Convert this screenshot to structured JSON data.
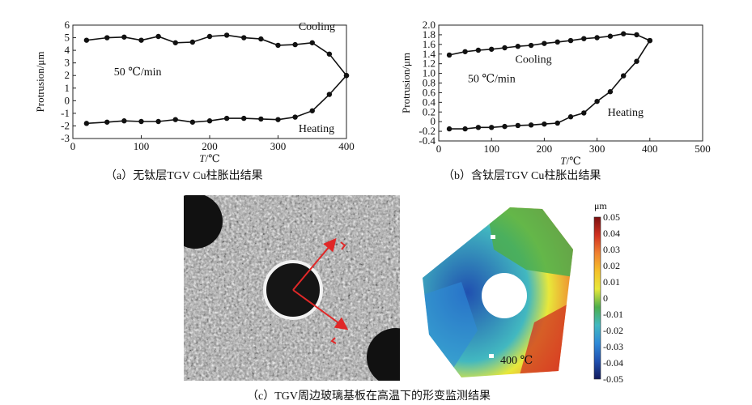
{
  "chart_data": [
    {
      "type": "line",
      "panel": "a",
      "caption": "（a）无钛层TGV Cu柱胀出结果",
      "xlabel_italic": "T",
      "xlabel_unit": "/℃",
      "ylabel": "Protrusion/μm",
      "xlim": [
        0,
        400
      ],
      "ylim": [
        -3,
        6
      ],
      "xticks": [
        0,
        100,
        200,
        300,
        400
      ],
      "yticks": [
        -3,
        -2,
        -1,
        0,
        1,
        2,
        3,
        4,
        5,
        6
      ],
      "annotations": [
        {
          "text": "Cooling",
          "at": [
            330,
            5.6
          ]
        },
        {
          "text": "50 ℃/min",
          "at": [
            60,
            2.0
          ]
        },
        {
          "text": "Heating",
          "at": [
            330,
            -2.5
          ]
        }
      ],
      "series": [
        {
          "label": "Heating",
          "x": [
            20,
            50,
            75,
            100,
            125,
            150,
            175,
            200,
            225,
            250,
            275,
            300,
            325,
            350,
            375,
            400
          ],
          "y": [
            -1.8,
            -1.7,
            -1.6,
            -1.65,
            -1.65,
            -1.5,
            -1.7,
            -1.6,
            -1.4,
            -1.4,
            -1.45,
            -1.5,
            -1.3,
            -0.8,
            0.5,
            2.0
          ]
        },
        {
          "label": "Cooling",
          "x": [
            20,
            50,
            75,
            100,
            125,
            150,
            175,
            200,
            225,
            250,
            275,
            300,
            325,
            350,
            375,
            400
          ],
          "y": [
            4.8,
            5.0,
            5.05,
            4.8,
            5.1,
            4.6,
            4.65,
            5.1,
            5.2,
            5.0,
            4.9,
            4.4,
            4.45,
            4.6,
            3.7,
            2.0
          ]
        }
      ]
    },
    {
      "type": "line",
      "panel": "b",
      "caption": "（b）含钛层TGV Cu柱胀出结果",
      "xlabel_italic": "T",
      "xlabel_unit": "/℃",
      "ylabel": "Protrusion/μm",
      "xlim": [
        0,
        500
      ],
      "ylim": [
        -0.4,
        2.0
      ],
      "xticks": [
        0,
        100,
        200,
        300,
        400,
        500
      ],
      "yticks": [
        "-0.4",
        "-0.2",
        "0",
        "0.2",
        "0.4",
        "0.6",
        "0.8",
        "1.0",
        "1.2",
        "1.4",
        "1.6",
        "1.8",
        "2.0"
      ],
      "annotations": [
        {
          "text": "Cooling",
          "at": [
            145,
            1.22
          ]
        },
        {
          "text": "50 ℃/min",
          "at": [
            55,
            0.82
          ]
        },
        {
          "text": "Heating",
          "at": [
            320,
            0.12
          ]
        }
      ],
      "series": [
        {
          "label": "Heating",
          "x": [
            20,
            50,
            75,
            100,
            125,
            150,
            175,
            200,
            225,
            250,
            275,
            300,
            325,
            350,
            375,
            400
          ],
          "y": [
            -0.15,
            -0.15,
            -0.12,
            -0.12,
            -0.1,
            -0.08,
            -0.07,
            -0.05,
            -0.03,
            0.1,
            0.18,
            0.42,
            0.62,
            0.95,
            1.25,
            1.68
          ]
        },
        {
          "label": "Cooling",
          "x": [
            20,
            50,
            75,
            100,
            125,
            150,
            175,
            200,
            225,
            250,
            275,
            300,
            325,
            350,
            375,
            400
          ],
          "y": [
            1.38,
            1.45,
            1.48,
            1.5,
            1.53,
            1.56,
            1.58,
            1.62,
            1.65,
            1.68,
            1.72,
            1.74,
            1.77,
            1.82,
            1.8,
            1.68
          ]
        }
      ]
    },
    {
      "type": "heatmap",
      "panel": "c",
      "caption": "（c）TGV周边玻璃基板在高温下的形变监测结果",
      "colorbar_unit": "μm",
      "colorbar_ticks": [
        "0.05",
        "0.04",
        "0.03",
        "0.02",
        "0.01",
        "0",
        "-0.01",
        "-0.02",
        "-0.03",
        "-0.04",
        "-0.05"
      ],
      "colorbar_range": [
        -0.05,
        0.05
      ],
      "colors": [
        "#7a1010",
        "#d03020",
        "#f08030",
        "#f5c02a",
        "#e8e83a",
        "#4cae4c",
        "#42b8c0",
        "#2f8ad8",
        "#2050b0",
        "#121a5c"
      ],
      "annotation": "400 ℃"
    }
  ]
}
